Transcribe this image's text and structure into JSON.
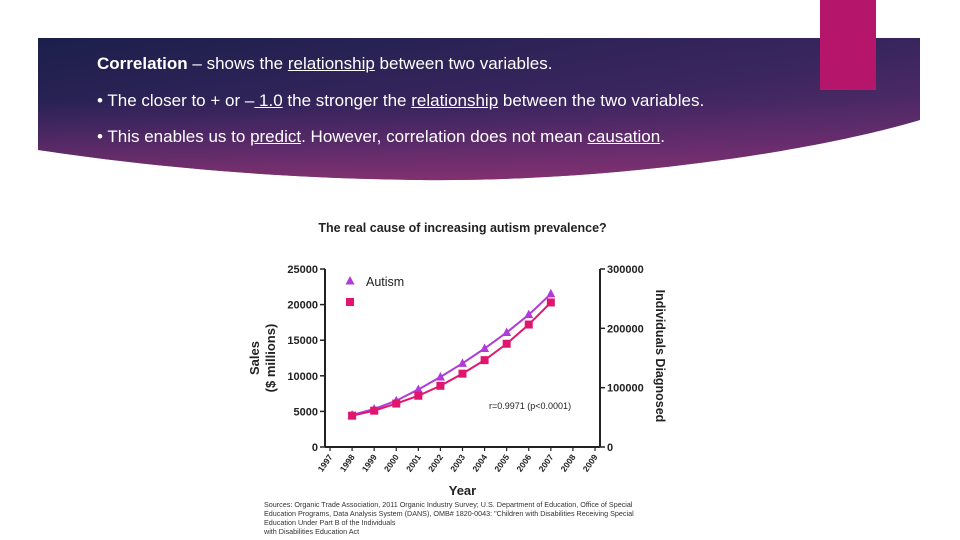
{
  "slide": {
    "line1": {
      "bold": "Correlation",
      "dash": " – ",
      "pre": "shows the ",
      "link": "relationship",
      "post": " between two variables."
    },
    "line2": {
      "pre": "• The closer to + or ",
      "dash": "–",
      "num": " 1.0",
      "mid": " the stronger the ",
      "link": "relationship",
      "post": " between the two variables."
    },
    "line3": {
      "pre": "• This enables us to ",
      "link1": "predict",
      "mid": ".  However, correlation does not mean ",
      "link2": "causation",
      "post": "."
    },
    "accent_color": "#b5166b",
    "banner_colors": [
      "#1b1f4b",
      "#5a2a6e",
      "#8a3272"
    ]
  },
  "chart_data": {
    "type": "line",
    "title": "The real cause of increasing autism prevalence?",
    "xlabel": "Year",
    "ylabel_left": [
      "Sales",
      "($ millions)"
    ],
    "ylabel_right": "Individuals Diagnosed",
    "x": [
      1997,
      1998,
      1999,
      2000,
      2001,
      2002,
      2003,
      2004,
      2005,
      2006,
      2007,
      2008,
      2009
    ],
    "yticks_left": [
      0,
      5000,
      10000,
      15000,
      20000,
      25000
    ],
    "yticks_right": [
      0,
      100000,
      200000,
      300000
    ],
    "ylim_left": [
      0,
      25000
    ],
    "ylim_right": [
      0,
      300000
    ],
    "series": [
      {
        "name": "Autism",
        "axis": "right",
        "marker": "triangle",
        "color": "#b03bd6",
        "x": [
          1998,
          1999,
          2000,
          2001,
          2002,
          2003,
          2004,
          2005,
          2006,
          2007
        ],
        "values": [
          54000,
          64000,
          78000,
          97000,
          118000,
          141000,
          166000,
          193000,
          223000,
          258000
        ]
      },
      {
        "name": "",
        "axis": "left",
        "marker": "square",
        "color": "#e0166e",
        "x": [
          1998,
          1999,
          2000,
          2001,
          2002,
          2003,
          2004,
          2005,
          2006,
          2007
        ],
        "values": [
          4400,
          5100,
          6100,
          7200,
          8600,
          10300,
          12200,
          14500,
          17200,
          20300
        ]
      }
    ],
    "annotation": "r=0.9971 (p<0.0001)",
    "legend_position": "top-left",
    "sources": [
      "Sources: Organic Trade Association, 2011 Organic Industry Survey; U.S. Department of Education, Office of Special",
      "Education Programs, Data Analysis System (DANS), OMB# 1820-0043: \"Children with Disabilities Receiving Special",
      "Education Under Part B of the Individuals",
      "with Disabilities Education Act"
    ]
  }
}
